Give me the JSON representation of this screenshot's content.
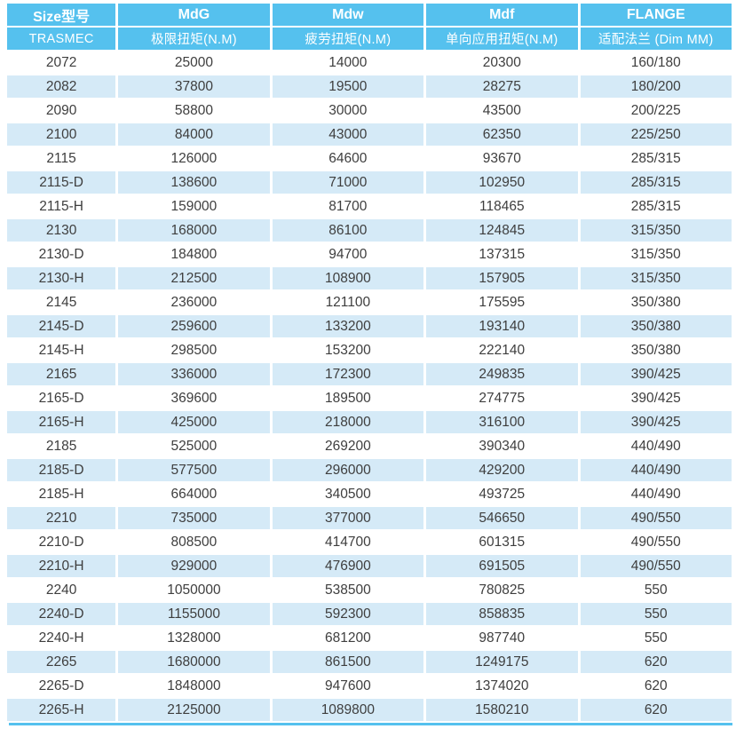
{
  "colors": {
    "header_bg": "#55c1ee",
    "row_alt_bg": "#d5eaf7",
    "row_bg": "#ffffff",
    "header_text": "#ffffff",
    "body_text": "#3e3e3e",
    "bottom_bar": "#55c1ee"
  },
  "table": {
    "columns": [
      {
        "title": "Size型号",
        "subtitle": "TRASMEC"
      },
      {
        "title": "MdG",
        "subtitle": "极限扭矩(N.M)"
      },
      {
        "title": "Mdw",
        "subtitle": "疲劳扭矩(N.M)"
      },
      {
        "title": "Mdf",
        "subtitle": "单向应用扭矩(N.M)"
      },
      {
        "title": "FLANGE",
        "subtitle": "适配法兰 (Dim MM)"
      }
    ],
    "rows": [
      [
        "2072",
        "25000",
        "14000",
        "20300",
        "160/180"
      ],
      [
        "2082",
        "37800",
        "19500",
        "28275",
        "180/200"
      ],
      [
        "2090",
        "58800",
        "30000",
        "43500",
        "200/225"
      ],
      [
        "2100",
        "84000",
        "43000",
        "62350",
        "225/250"
      ],
      [
        "2115",
        "126000",
        "64600",
        "93670",
        "285/315"
      ],
      [
        "2115-D",
        "138600",
        "71000",
        "102950",
        "285/315"
      ],
      [
        "2115-H",
        "159000",
        "81700",
        "118465",
        "285/315"
      ],
      [
        "2130",
        "168000",
        "86100",
        "124845",
        "315/350"
      ],
      [
        "2130-D",
        "184800",
        "94700",
        "137315",
        "315/350"
      ],
      [
        "2130-H",
        "212500",
        "108900",
        "157905",
        "315/350"
      ],
      [
        "2145",
        "236000",
        "121100",
        "175595",
        "350/380"
      ],
      [
        "2145-D",
        "259600",
        "133200",
        "193140",
        "350/380"
      ],
      [
        "2145-H",
        "298500",
        "153200",
        "222140",
        "350/380"
      ],
      [
        "2165",
        "336000",
        "172300",
        "249835",
        "390/425"
      ],
      [
        "2165-D",
        "369600",
        "189500",
        "274775",
        "390/425"
      ],
      [
        "2165-H",
        "425000",
        "218000",
        "316100",
        "390/425"
      ],
      [
        "2185",
        "525000",
        "269200",
        "390340",
        "440/490"
      ],
      [
        "2185-D",
        "577500",
        "296000",
        "429200",
        "440/490"
      ],
      [
        "2185-H",
        "664000",
        "340500",
        "493725",
        "440/490"
      ],
      [
        "2210",
        "735000",
        "377000",
        "546650",
        "490/550"
      ],
      [
        "2210-D",
        "808500",
        "414700",
        "601315",
        "490/550"
      ],
      [
        "2210-H",
        "929000",
        "476900",
        "691505",
        "490/550"
      ],
      [
        "2240",
        "1050000",
        "538500",
        "780825",
        "550"
      ],
      [
        "2240-D",
        "1155000",
        "592300",
        "858835",
        "550"
      ],
      [
        "2240-H",
        "1328000",
        "681200",
        "987740",
        "550"
      ],
      [
        "2265",
        "1680000",
        "861500",
        "1249175",
        "620"
      ],
      [
        "2265-D",
        "1848000",
        "947600",
        "1374020",
        "620"
      ],
      [
        "2265-H",
        "2125000",
        "1089800",
        "1580210",
        "620"
      ]
    ]
  }
}
